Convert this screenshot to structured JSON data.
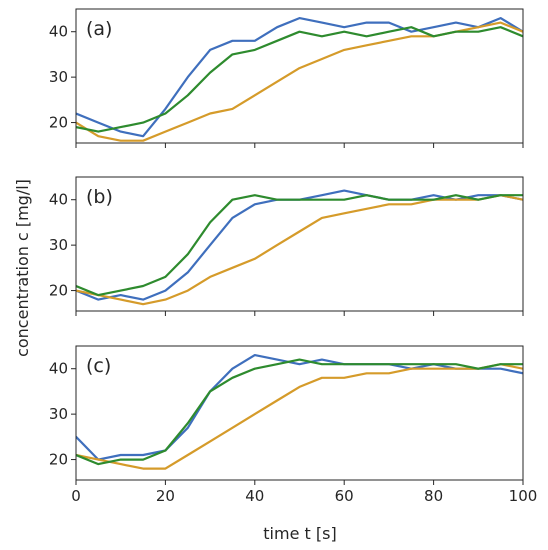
{
  "chart_data": {
    "type": "line",
    "xlabel": "time t [s]",
    "ylabel": "concentration c [mg/l]",
    "xlim": [
      0,
      100
    ],
    "ylim": [
      15.5,
      45
    ],
    "xticks": [
      0,
      20,
      40,
      60,
      80,
      100
    ],
    "yticks": [
      20,
      30,
      40
    ],
    "grid": false,
    "colors": {
      "blue": "#3f6fbd",
      "orange": "#d59b2a",
      "green": "#2e8b2e"
    },
    "panels": [
      {
        "label": "(a)",
        "series": [
          {
            "color": "blue",
            "x": [
              0,
              5,
              10,
              15,
              20,
              25,
              30,
              35,
              40,
              45,
              50,
              55,
              60,
              65,
              70,
              75,
              80,
              85,
              90,
              95,
              100
            ],
            "y": [
              22,
              20,
              18,
              17,
              23,
              30,
              36,
              38,
              38,
              41,
              43,
              42,
              41,
              42,
              42,
              40,
              41,
              42,
              41,
              43,
              40
            ]
          },
          {
            "color": "orange",
            "x": [
              0,
              5,
              10,
              15,
              20,
              25,
              30,
              35,
              40,
              45,
              50,
              55,
              60,
              65,
              70,
              75,
              80,
              85,
              90,
              95,
              100
            ],
            "y": [
              20,
              17,
              16,
              16,
              18,
              20,
              22,
              23,
              26,
              29,
              32,
              34,
              36,
              37,
              38,
              39,
              39,
              40,
              41,
              42,
              40
            ]
          },
          {
            "color": "green",
            "x": [
              0,
              5,
              10,
              15,
              20,
              25,
              30,
              35,
              40,
              45,
              50,
              55,
              60,
              65,
              70,
              75,
              80,
              85,
              90,
              95,
              100
            ],
            "y": [
              19,
              18,
              19,
              20,
              22,
              26,
              31,
              35,
              36,
              38,
              40,
              39,
              40,
              39,
              40,
              41,
              39,
              40,
              40,
              41,
              39
            ]
          }
        ]
      },
      {
        "label": "(b)",
        "series": [
          {
            "color": "blue",
            "x": [
              0,
              5,
              10,
              15,
              20,
              25,
              30,
              35,
              40,
              45,
              50,
              55,
              60,
              65,
              70,
              75,
              80,
              85,
              90,
              95,
              100
            ],
            "y": [
              20,
              18,
              19,
              18,
              20,
              24,
              30,
              36,
              39,
              40,
              40,
              41,
              42,
              41,
              40,
              40,
              41,
              40,
              41,
              41,
              40
            ]
          },
          {
            "color": "orange",
            "x": [
              0,
              5,
              10,
              15,
              20,
              25,
              30,
              35,
              40,
              45,
              50,
              55,
              60,
              65,
              70,
              75,
              80,
              85,
              90,
              95,
              100
            ],
            "y": [
              20,
              19,
              18,
              17,
              18,
              20,
              23,
              25,
              27,
              30,
              33,
              36,
              37,
              38,
              39,
              39,
              40,
              40,
              40,
              41,
              40
            ]
          },
          {
            "color": "green",
            "x": [
              0,
              5,
              10,
              15,
              20,
              25,
              30,
              35,
              40,
              45,
              50,
              55,
              60,
              65,
              70,
              75,
              80,
              85,
              90,
              95,
              100
            ],
            "y": [
              21,
              19,
              20,
              21,
              23,
              28,
              35,
              40,
              41,
              40,
              40,
              40,
              40,
              41,
              40,
              40,
              40,
              41,
              40,
              41,
              41
            ]
          }
        ]
      },
      {
        "label": "(c)",
        "series": [
          {
            "color": "blue",
            "x": [
              0,
              5,
              10,
              15,
              20,
              25,
              30,
              35,
              40,
              45,
              50,
              55,
              60,
              65,
              70,
              75,
              80,
              85,
              90,
              95,
              100
            ],
            "y": [
              25,
              20,
              21,
              21,
              22,
              27,
              35,
              40,
              43,
              42,
              41,
              42,
              41,
              41,
              41,
              40,
              41,
              40,
              40,
              40,
              39
            ]
          },
          {
            "color": "orange",
            "x": [
              0,
              5,
              10,
              15,
              20,
              25,
              30,
              35,
              40,
              45,
              50,
              55,
              60,
              65,
              70,
              75,
              80,
              85,
              90,
              95,
              100
            ],
            "y": [
              21,
              20,
              19,
              18,
              18,
              21,
              24,
              27,
              30,
              33,
              36,
              38,
              38,
              39,
              39,
              40,
              40,
              40,
              40,
              41,
              40
            ]
          },
          {
            "color": "green",
            "x": [
              0,
              5,
              10,
              15,
              20,
              25,
              30,
              35,
              40,
              45,
              50,
              55,
              60,
              65,
              70,
              75,
              80,
              85,
              90,
              95,
              100
            ],
            "y": [
              21,
              19,
              20,
              20,
              22,
              28,
              35,
              38,
              40,
              41,
              42,
              41,
              41,
              41,
              41,
              41,
              41,
              41,
              40,
              41,
              41
            ]
          }
        ]
      }
    ]
  }
}
